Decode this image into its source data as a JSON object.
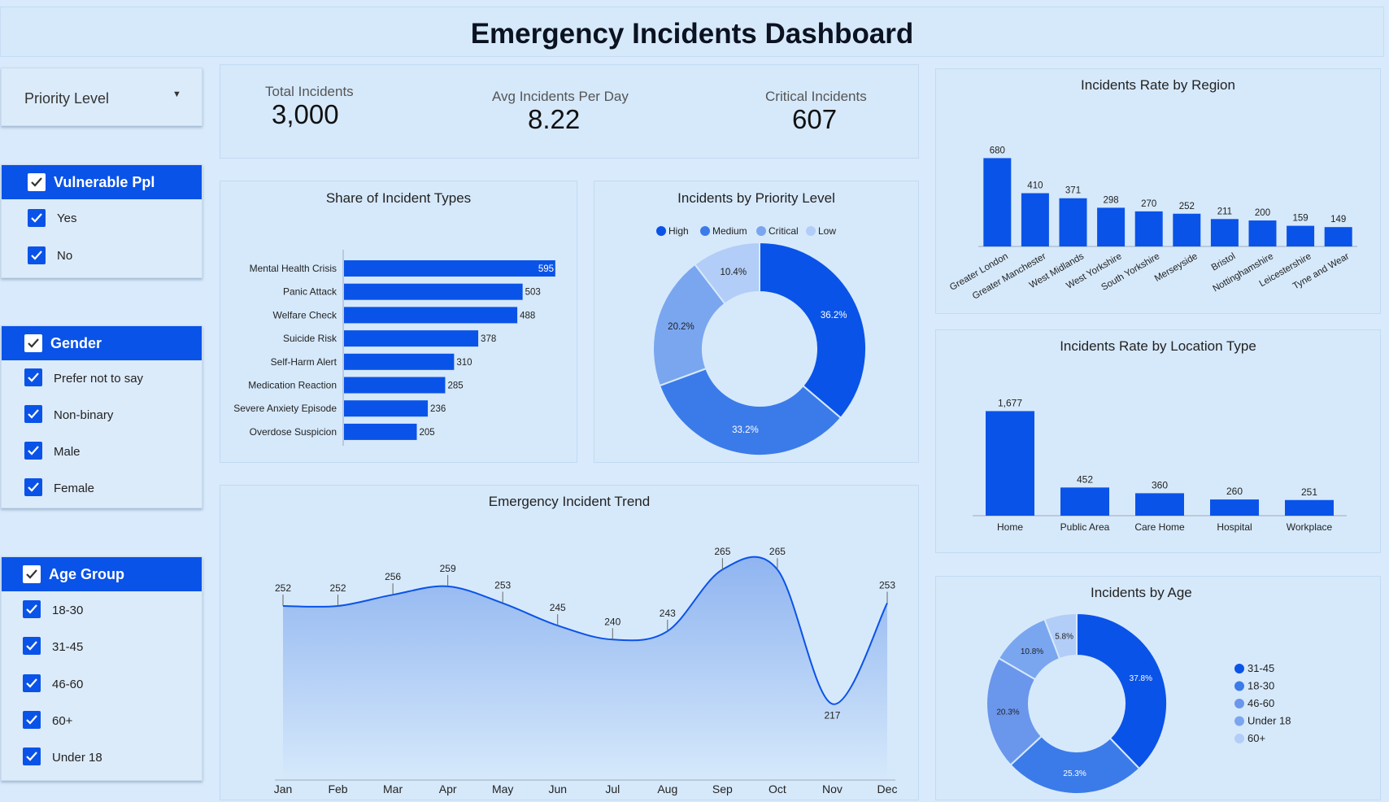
{
  "title": "Emergency Incidents Dashboard",
  "colors": {
    "primary": "#0a53e8",
    "medium": "#3b7be9",
    "light": "#7aa6f0",
    "pale": "#b2cdf7",
    "bg": "#d8eafb"
  },
  "filters": {
    "priority_dropdown": {
      "label": "Priority Level",
      "icon": "chevron-down-icon"
    },
    "vulnerable": {
      "title": "Vulnerable Ppl",
      "items": [
        "Yes",
        "No"
      ]
    },
    "gender": {
      "title": "Gender",
      "items": [
        "Prefer not to say",
        "Non-binary",
        "Male",
        "Female"
      ]
    },
    "age_group": {
      "title": "Age Group",
      "items": [
        "18-30",
        "31-45",
        "46-60",
        "60+",
        "Under 18"
      ]
    }
  },
  "kpis": {
    "total": {
      "label": "Total Incidents",
      "value": "3,000"
    },
    "avg": {
      "label": "Avg Incidents Per Day",
      "value": "8.22"
    },
    "critical": {
      "label": "Critical Incidents",
      "value": "607"
    }
  },
  "chart_data": [
    {
      "id": "incident_types",
      "type": "bar",
      "orientation": "horizontal",
      "title": "Share of Incident Types",
      "categories": [
        "Mental Health Crisis",
        "Panic Attack",
        "Welfare Check",
        "Suicide Risk",
        "Self-Harm Alert",
        "Medication Reaction",
        "Severe Anxiety Episode",
        "Overdose Suspicion"
      ],
      "values": [
        595,
        503,
        488,
        378,
        310,
        285,
        236,
        205
      ],
      "value_labels": [
        "595",
        "503",
        "488",
        "378",
        "310",
        "285",
        "236",
        "205"
      ],
      "xlim": [
        0,
        600
      ]
    },
    {
      "id": "priority",
      "type": "pie",
      "donut": true,
      "title": "Incidents by Priority Level",
      "legend_position": "top",
      "labels": [
        "High",
        "Medium",
        "Critical",
        "Low"
      ],
      "values": [
        36.2,
        33.2,
        20.2,
        10.4
      ],
      "value_labels": [
        "36.2%",
        "33.2%",
        "20.2%",
        "10.4%"
      ]
    },
    {
      "id": "region",
      "type": "bar",
      "title": "Incidents Rate by Region",
      "categories": [
        "Greater London",
        "Greater Manchester",
        "West Midlands",
        "West Yorkshire",
        "South Yorkshire",
        "Merseyside",
        "Bristol",
        "Nottinghamshire",
        "Leicestershire",
        "Tyne and Wear"
      ],
      "values": [
        680,
        410,
        371,
        298,
        270,
        252,
        211,
        200,
        159,
        149
      ],
      "value_labels": [
        "680",
        "410",
        "371",
        "298",
        "270",
        "252",
        "211",
        "200",
        "159",
        "149"
      ],
      "ylim": [
        0,
        720
      ]
    },
    {
      "id": "location",
      "type": "bar",
      "title": "Incidents Rate by Location Type",
      "categories": [
        "Home",
        "Public Area",
        "Care Home",
        "Hospital",
        "Workplace"
      ],
      "values": [
        1677,
        452,
        360,
        260,
        251
      ],
      "value_labels": [
        "1,677",
        "452",
        "360",
        "260",
        "251"
      ],
      "ylim": [
        0,
        1800
      ]
    },
    {
      "id": "trend",
      "type": "area",
      "title": "Emergency Incident Trend",
      "categories": [
        "Jan",
        "Feb",
        "Mar",
        "Apr",
        "May",
        "Jun",
        "Jul",
        "Aug",
        "Sep",
        "Oct",
        "Nov",
        "Dec"
      ],
      "values": [
        252,
        252,
        256,
        259,
        253,
        245,
        240,
        243,
        265,
        265,
        217,
        253
      ],
      "value_labels": [
        "252",
        "252",
        "256",
        "259",
        "253",
        "245",
        "240",
        "243",
        "265",
        "265",
        "217",
        "253"
      ],
      "ylim": [
        200,
        270
      ]
    },
    {
      "id": "age",
      "type": "pie",
      "donut": true,
      "title": "Incidents by Age",
      "legend_position": "right",
      "labels": [
        "31-45",
        "18-30",
        "46-60",
        "Under 18",
        "60+"
      ],
      "values": [
        37.8,
        25.3,
        20.3,
        10.8,
        5.8
      ],
      "value_labels": [
        "37.8%",
        "25.3%",
        "20.3%",
        "10.8%",
        "5.8%"
      ]
    }
  ]
}
